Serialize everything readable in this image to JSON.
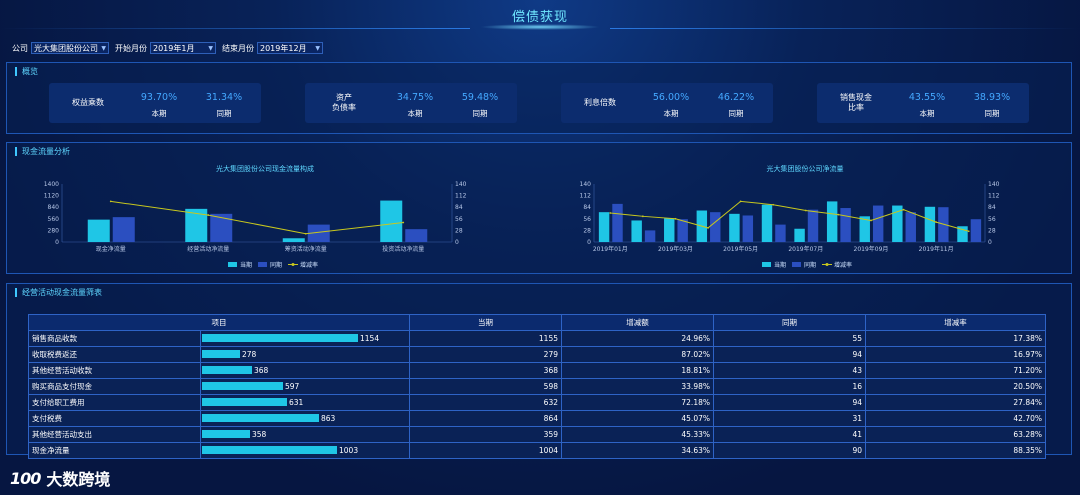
{
  "header": {
    "title": "偿债获现"
  },
  "filters": {
    "company_label": "公司",
    "company_value": "光大集团股份公司",
    "start_label": "开始月份",
    "start_value": "2019年1月",
    "end_label": "结束月份",
    "end_value": "2019年12月"
  },
  "overview": {
    "title": "概览",
    "cards": [
      {
        "name": "权益乘数",
        "current": "93.70%",
        "previous": "31.34%",
        "current_label": "本期",
        "previous_label": "同期"
      },
      {
        "name": "资产\n负债率",
        "current": "34.75%",
        "previous": "59.48%",
        "current_label": "本期",
        "previous_label": "同期"
      },
      {
        "name": "利息倍数",
        "current": "56.00%",
        "previous": "46.22%",
        "current_label": "本期",
        "previous_label": "同期"
      },
      {
        "name": "销售现金\n比率",
        "current": "43.55%",
        "previous": "38.93%",
        "current_label": "本期",
        "previous_label": "同期"
      }
    ]
  },
  "cashflow": {
    "title": "现金流量分析"
  },
  "chart_data": [
    {
      "type": "bar",
      "title": "光大集团股份公司现金流量构成",
      "categories": [
        "现金净流量",
        "经营活动净流量",
        "筹资活动净流量",
        "投资活动净流量"
      ],
      "y_ticks": [
        "1400",
        "1120",
        "840",
        "560",
        "280",
        "0"
      ],
      "y2_ticks": [
        "140",
        "112",
        "84",
        "56",
        "28",
        "0"
      ],
      "ylim": [
        0,
        1400
      ],
      "y2lim": [
        0,
        140
      ],
      "series": [
        {
          "name": "当期",
          "kind": "bar",
          "color": "#1fc6e6",
          "values": [
            540,
            800,
            90,
            1000
          ]
        },
        {
          "name": "同期",
          "kind": "bar",
          "color": "#2b4fc0",
          "values": [
            600,
            680,
            420,
            310
          ]
        },
        {
          "name": "增减率",
          "kind": "line",
          "axis": "right",
          "color": "#c8c81e",
          "values": [
            98,
            65,
            20,
            47
          ]
        }
      ],
      "legend": "bottom"
    },
    {
      "type": "bar",
      "title": "光大集团股份公司净流量",
      "categories": [
        "2019年01月",
        "2019年02月",
        "2019年03月",
        "2019年04月",
        "2019年05月",
        "2019年06月",
        "2019年07月",
        "2019年08月",
        "2019年09月",
        "2019年10月",
        "2019年11月",
        "2019年12月"
      ],
      "x_tick_labels": [
        "2019年01月",
        "2019年03月",
        "2019年05月",
        "2019年07月",
        "2019年09月",
        "2019年11月"
      ],
      "y_ticks": [
        "140",
        "112",
        "84",
        "56",
        "28",
        "0"
      ],
      "y2_ticks": [
        "140",
        "112",
        "84",
        "56",
        "28",
        "0"
      ],
      "ylim": [
        0,
        140
      ],
      "y2lim": [
        0,
        140
      ],
      "series": [
        {
          "name": "当期",
          "kind": "bar",
          "color": "#1fc6e6",
          "values": [
            72,
            52,
            57,
            76,
            68,
            90,
            32,
            98,
            62,
            88,
            85,
            38
          ]
        },
        {
          "name": "同期",
          "kind": "bar",
          "color": "#2b4fc0",
          "values": [
            92,
            28,
            55,
            72,
            64,
            42,
            78,
            82,
            88,
            72,
            84,
            55
          ]
        },
        {
          "name": "增减率",
          "kind": "line",
          "axis": "right",
          "color": "#c8c81e",
          "values": [
            70,
            62,
            56,
            34,
            98,
            90,
            76,
            66,
            52,
            78,
            48,
            26
          ]
        }
      ],
      "legend": "bottom"
    }
  ],
  "table_section": {
    "title": "经营活动现金流量筛表",
    "headers": [
      "项目",
      "当期",
      "增减额",
      "同期",
      "增减率"
    ],
    "bar_max": 1200,
    "rows": [
      {
        "item": "销售商品收款",
        "bar": 1154,
        "bar_label": "1154",
        "current": "1155",
        "change": "24.96%",
        "previous": "55",
        "rate": "17.38%"
      },
      {
        "item": "收取税费返还",
        "bar": 278,
        "bar_label": "278",
        "current": "279",
        "change": "87.02%",
        "previous": "94",
        "rate": "16.97%"
      },
      {
        "item": "其他经营活动收款",
        "bar": 368,
        "bar_label": "368",
        "current": "368",
        "change": "18.81%",
        "previous": "43",
        "rate": "71.20%"
      },
      {
        "item": "购买商品支付现金",
        "bar": 597,
        "bar_label": "597",
        "current": "598",
        "change": "33.98%",
        "previous": "16",
        "rate": "20.50%"
      },
      {
        "item": "支付给职工费用",
        "bar": 631,
        "bar_label": "631",
        "current": "632",
        "change": "72.18%",
        "previous": "94",
        "rate": "27.84%"
      },
      {
        "item": "支付税费",
        "bar": 863,
        "bar_label": "863",
        "current": "864",
        "change": "45.07%",
        "previous": "31",
        "rate": "42.70%"
      },
      {
        "item": "其他经营活动支出",
        "bar": 358,
        "bar_label": "358",
        "current": "359",
        "change": "45.33%",
        "previous": "41",
        "rate": "63.28%"
      },
      {
        "item": "现金净流量",
        "bar": 1003,
        "bar_label": "1003",
        "current": "1004",
        "change": "34.63%",
        "previous": "90",
        "rate": "88.35%"
      }
    ]
  },
  "logo": {
    "text": "大数跨境",
    "mark": "100"
  }
}
